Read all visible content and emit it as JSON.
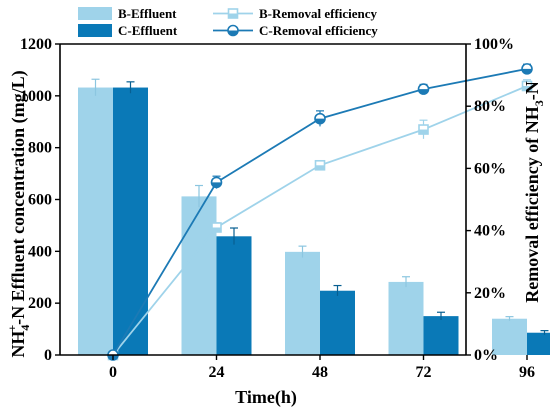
{
  "chart_data": {
    "type": "bar+line",
    "categories": [
      "0",
      "24",
      "48",
      "72",
      "96"
    ],
    "xlabel": "Time(h)",
    "ylabel_left": {
      "prefix": "NH",
      "sup": "+",
      "sub": "4",
      "suffix": "-N  Effluent concentration (mg/L)"
    },
    "ylabel_right": {
      "prefix": "Removal efficiency of  NH",
      "sub": "3",
      "suffix": "-N"
    },
    "y_left": {
      "lim": [
        0,
        1200
      ],
      "ticks": [
        "0",
        "200",
        "400",
        "600",
        "800",
        "1000",
        "1200"
      ]
    },
    "y_right": {
      "lim": [
        0,
        100
      ],
      "ticks": [
        "0%",
        "20%",
        "40%",
        "60%",
        "80%",
        "100%"
      ]
    },
    "bars": [
      {
        "name": "B-Effluent",
        "color": "#9fd3ea",
        "values": [
          1032,
          612,
          398,
          282,
          140
        ],
        "errors": [
          32,
          42,
          22,
          20,
          8
        ]
      },
      {
        "name": "C-Effluent",
        "color": "#0a79b7",
        "values": [
          1032,
          458,
          248,
          150,
          86
        ],
        "errors": [
          22,
          32,
          20,
          15,
          8
        ]
      }
    ],
    "lines": [
      {
        "name": "B-Removal efficiency",
        "color": "#9fd3ea",
        "marker": "square",
        "values": [
          0,
          41,
          61,
          72.5,
          86.5
        ],
        "errors": [
          0,
          1.5,
          1.5,
          3,
          2
        ]
      },
      {
        "name": "C-Removal efficiency",
        "color": "#1c7ab5",
        "marker": "circle",
        "values": [
          0,
          55.5,
          76,
          85.5,
          92
        ],
        "errors": [
          0,
          2,
          2.5,
          1.5,
          1.5
        ]
      }
    ],
    "legend_position": "top-left"
  }
}
